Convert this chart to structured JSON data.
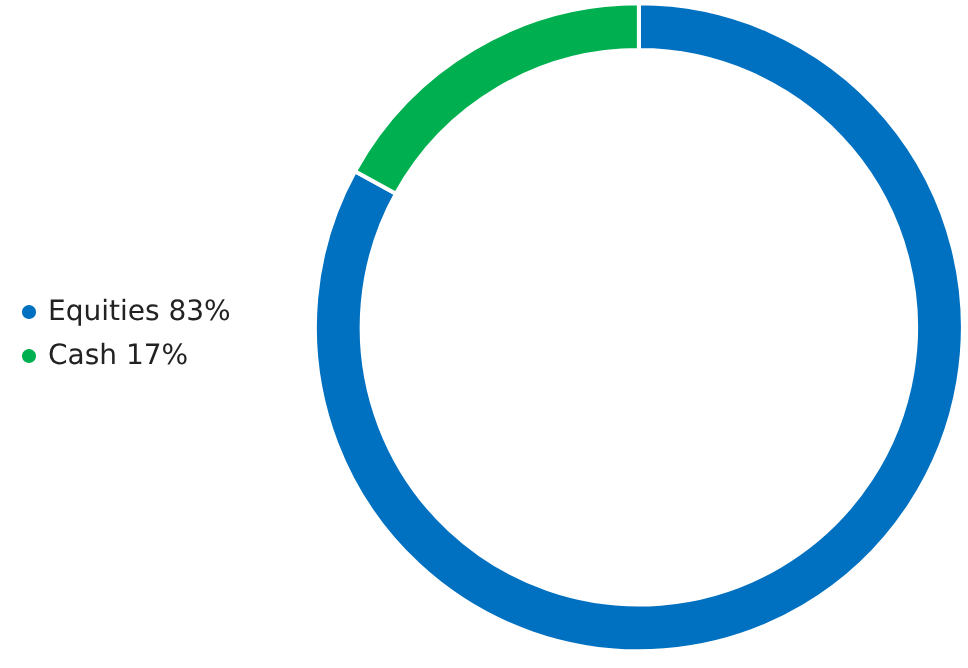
{
  "chart_data": {
    "type": "donut",
    "categories": [
      "Equities 83%",
      "Cash 17%"
    ],
    "values": [
      83,
      17
    ],
    "colors": [
      "#0070c0",
      "#00b050"
    ],
    "legend": "left"
  }
}
